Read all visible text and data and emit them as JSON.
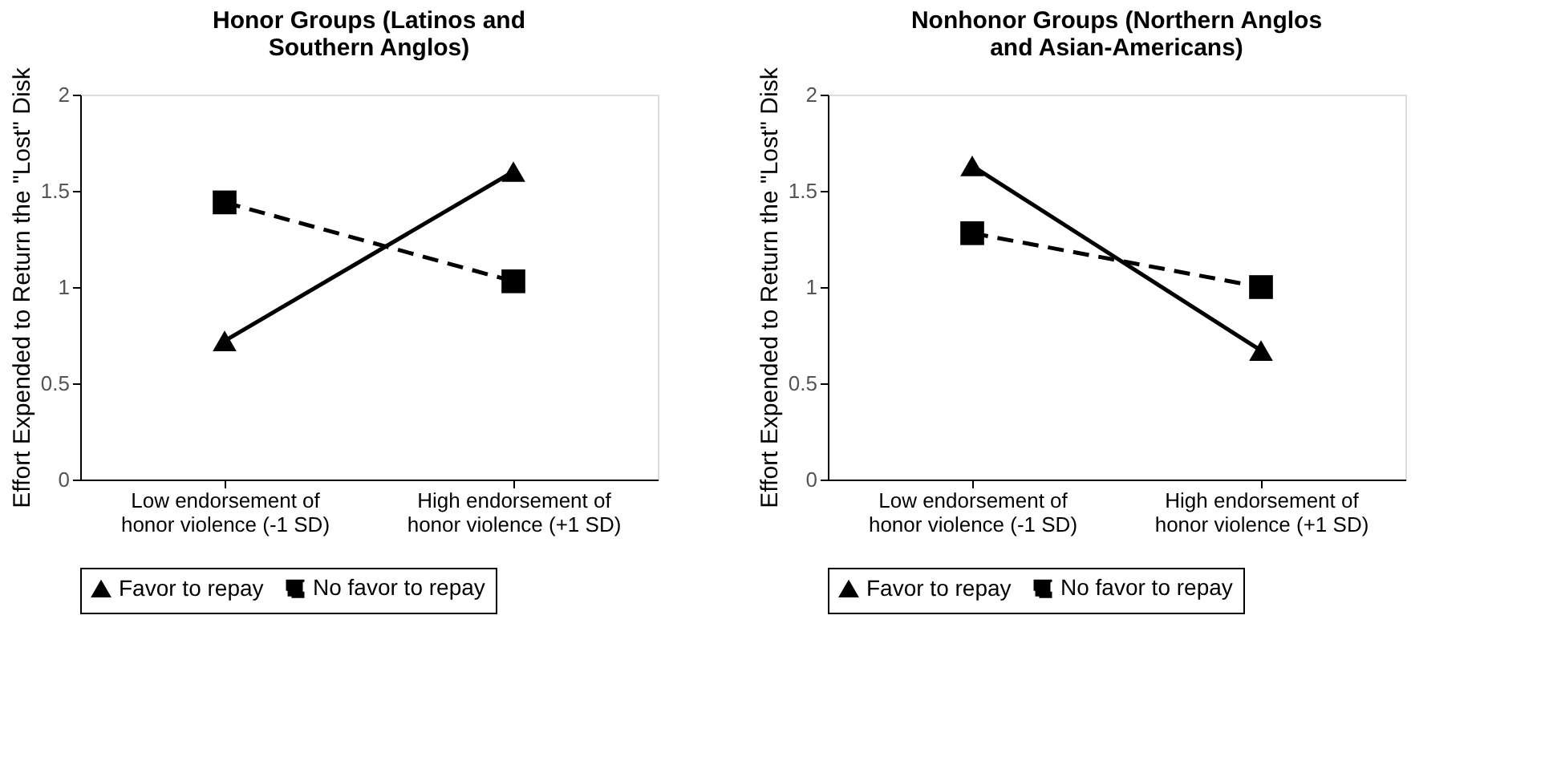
{
  "chart_data": [
    {
      "type": "line",
      "title": "Honor Groups (Latinos and Southern Anglos)",
      "ylabel": "Effort Expended to Return the \"Lost\" Disk",
      "categories": [
        "Low endorsement of honor violence (-1 SD)",
        "High endorsement of honor violence (+1 SD)"
      ],
      "ylim": [
        0,
        2
      ],
      "yticks": [
        0,
        0.5,
        1,
        1.5,
        2
      ],
      "grid": false,
      "legend": "bottom",
      "series": [
        {
          "name": "Favor to repay",
          "color": "#000000",
          "marker": "triangle",
          "line_style": "solid",
          "values": [
            0.72,
            1.6
          ]
        },
        {
          "name": "No favor to repay",
          "color": "#000000",
          "marker": "square",
          "line_style": "dashed",
          "values": [
            1.44,
            1.03
          ]
        }
      ]
    },
    {
      "type": "line",
      "title": "Nonhonor Groups (Northern Anglos and Asian-Americans)",
      "ylabel": "Effort Expended to Return the \"Lost\" Disk",
      "categories": [
        "Low endorsement of honor violence (-1 SD)",
        "High endorsement of honor violence (+1 SD)"
      ],
      "ylim": [
        0,
        2
      ],
      "yticks": [
        0,
        0.5,
        1,
        1.5,
        2
      ],
      "grid": false,
      "legend": "bottom",
      "series": [
        {
          "name": "Favor to repay",
          "color": "#000000",
          "marker": "triangle",
          "line_style": "solid",
          "values": [
            1.63,
            0.67
          ]
        },
        {
          "name": "No favor to repay",
          "color": "#000000",
          "marker": "square",
          "line_style": "dashed",
          "values": [
            1.28,
            1.0
          ]
        }
      ]
    }
  ]
}
